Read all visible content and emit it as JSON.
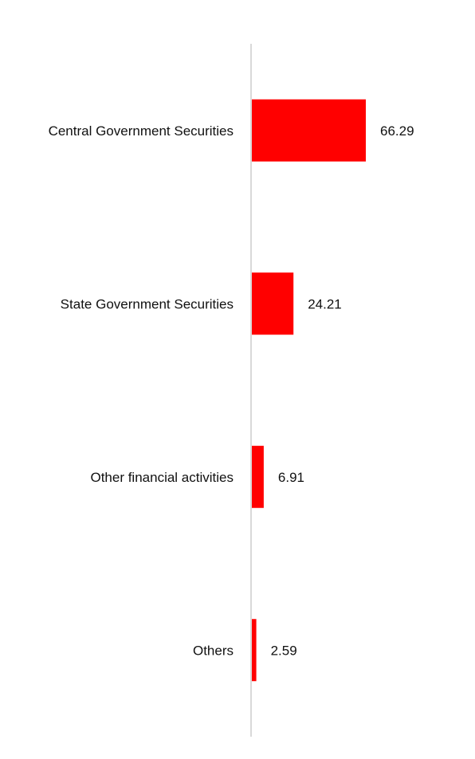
{
  "chart_data": {
    "type": "bar",
    "orientation": "horizontal",
    "title": "",
    "xlabel": "",
    "ylabel": "",
    "categories": [
      "Central Government Securities",
      "State Government Securities",
      "Other financial activities",
      "Others"
    ],
    "values": [
      66.29,
      24.21,
      6.91,
      2.59
    ],
    "value_labels": [
      "66.29",
      "24.21",
      "6.91",
      "2.59"
    ],
    "xlim": [
      0,
      100
    ],
    "grid": false,
    "legend": "none",
    "bar_color": "#ff0000",
    "axis_color": "#d9d9d9"
  }
}
